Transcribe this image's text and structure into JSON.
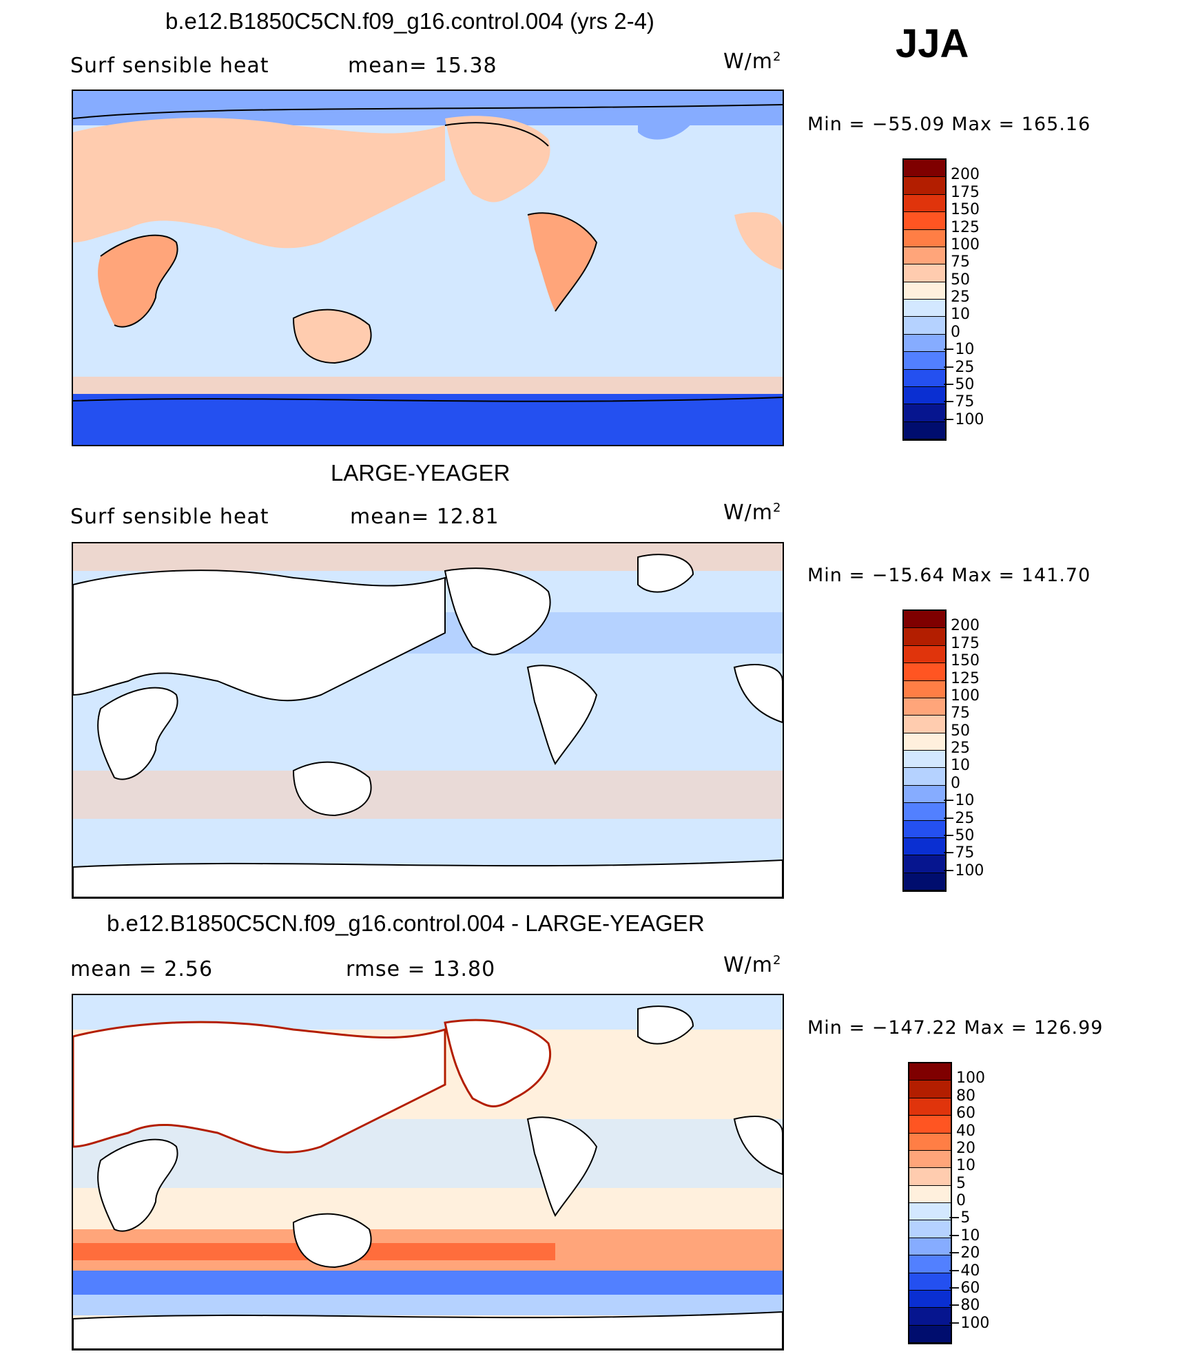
{
  "season": "JJA",
  "panels": [
    {
      "title": "b.e12.B1850C5CN.f09_g16.control.004 (yrs 2-4)",
      "variable": "Surf sensible heat",
      "stat1": "mean=   15.38",
      "stat2": "",
      "units": "W/m",
      "units_exp": "2",
      "minmax": "Min  =  −55.09  Max  =  165.16",
      "levels": [
        "200",
        "175",
        "150",
        "125",
        "100",
        "75",
        "50",
        "25",
        "10",
        "0",
        "−10",
        "−25",
        "−50",
        "−75",
        "−100"
      ],
      "colors": [
        "#7f0000",
        "#b31e00",
        "#e0340c",
        "#ff5522",
        "#ff7e45",
        "#ffa57a",
        "#ffccaf",
        "#fff0dd",
        "#d3e8ff",
        "#b5d2ff",
        "#86acff",
        "#5280ff",
        "#2450f0",
        "#0a2fd2",
        "#06158f",
        "#000d6e"
      ]
    },
    {
      "title": "LARGE-YEAGER",
      "variable": "Surf sensible heat",
      "stat1": "mean=   12.81",
      "stat2": "",
      "units": "W/m",
      "units_exp": "2",
      "minmax": "Min  =  −15.64  Max  =  141.70",
      "levels": [
        "200",
        "175",
        "150",
        "125",
        "100",
        "75",
        "50",
        "25",
        "10",
        "0",
        "−10",
        "−25",
        "−50",
        "−75",
        "−100"
      ],
      "colors": [
        "#7f0000",
        "#b31e00",
        "#e0340c",
        "#ff5522",
        "#ff7e45",
        "#ffa57a",
        "#ffccaf",
        "#fff0dd",
        "#d3e8ff",
        "#b5d2ff",
        "#86acff",
        "#5280ff",
        "#2450f0",
        "#0a2fd2",
        "#06158f",
        "#000d6e"
      ]
    },
    {
      "title": "b.e12.B1850C5CN.f09_g16.control.004 - LARGE-YEAGER",
      "variable": "mean =     2.56",
      "stat1": "rmse  =    13.80",
      "stat2": "",
      "units": "W/m",
      "units_exp": "2",
      "minmax": "Min  =  −147.22  Max  =  126.99",
      "levels": [
        "100",
        "80",
        "60",
        "40",
        "20",
        "10",
        "5",
        "0",
        "−5",
        "−10",
        "−20",
        "−40",
        "−60",
        "−80",
        "−100"
      ],
      "colors": [
        "#7f0000",
        "#b31e00",
        "#e0340c",
        "#ff5522",
        "#ff7e45",
        "#ffa57a",
        "#ffccaf",
        "#fff0dd",
        "#d3e8ff",
        "#b5d2ff",
        "#86acff",
        "#5280ff",
        "#2450f0",
        "#0a2fd2",
        "#06158f",
        "#000d6e"
      ]
    }
  ],
  "colors": {
    "ocean_light": "#d3e8ff",
    "ocean_mid": "#b5d2ff",
    "ocean_blue": "#86acff",
    "antarctic": "#2450f0",
    "land_warm": "#ffccaf",
    "land_hot": "#ffa57a",
    "diff_warm": "#fff0dd",
    "diff_hot": "#ff7e45",
    "land_white": "#ffffff"
  }
}
